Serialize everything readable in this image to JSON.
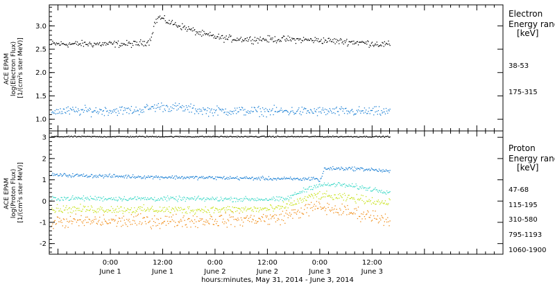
{
  "chart_data": [
    {
      "type": "scatter",
      "instrument": "ACE EPAM",
      "ylabel": [
        "ACE EPAM",
        "log(Electron Flux)",
        "[1/(cm²s ster MeV)]"
      ],
      "ylim": [
        0.75,
        3.45
      ],
      "yticks": [
        1.0,
        1.5,
        2.0,
        2.5,
        3.0
      ],
      "ytick_labels": [
        "1.0",
        "1.5",
        "2.0",
        "2.5",
        "3.0"
      ],
      "legend_title": [
        "Electron",
        "Energy ranges",
        "[keV]"
      ],
      "series": [
        {
          "name": "38-53",
          "color": "#000000",
          "profile": [
            [
              -14,
              2.62
            ],
            [
              6,
              2.62
            ],
            [
              9,
              2.68
            ],
            [
              10,
              3.05
            ],
            [
              11,
              3.2
            ],
            [
              13,
              3.1
            ],
            [
              17,
              2.97
            ],
            [
              21,
              2.83
            ],
            [
              26,
              2.74
            ],
            [
              32,
              2.72
            ],
            [
              40,
              2.72
            ],
            [
              48,
              2.7
            ],
            [
              56,
              2.66
            ],
            [
              64,
              2.6
            ]
          ],
          "noise": 0.05
        },
        {
          "name": "175-315",
          "color": "#1a7fd4",
          "profile": [
            [
              -14,
              1.18
            ],
            [
              6,
              1.2
            ],
            [
              11,
              1.28
            ],
            [
              15,
              1.26
            ],
            [
              22,
              1.19
            ],
            [
              40,
              1.18
            ],
            [
              64,
              1.17
            ]
          ],
          "noise": 0.07
        }
      ]
    },
    {
      "type": "scatter",
      "instrument": "ACE EPAM",
      "ylabel": [
        "ACE EPAM",
        "log(Proton Flux)",
        "[1/(cm²s ster MeV)]"
      ],
      "ylim": [
        -2.5,
        3.3
      ],
      "yticks": [
        -2,
        -1,
        0,
        1,
        2,
        3
      ],
      "ytick_labels": [
        "-2",
        "-1",
        "0",
        "1",
        "2",
        "3"
      ],
      "legend_title": [
        "Proton",
        "Energy ranges",
        "[keV]"
      ],
      "series": [
        {
          "name": "47-68",
          "color": "#000000",
          "profile": [
            [
              -14,
              3.05
            ],
            [
              64,
              3.05
            ]
          ],
          "noise": 0.02
        },
        {
          "name": "115-195",
          "color": "#1a7fd4",
          "profile": [
            [
              -14,
              1.25
            ],
            [
              10,
              1.15
            ],
            [
              30,
              1.1
            ],
            [
              44,
              1.05
            ],
            [
              47,
              1.1
            ],
            [
              48,
              0.95
            ],
            [
              49,
              1.55
            ],
            [
              55,
              1.55
            ],
            [
              60,
              1.5
            ],
            [
              64,
              1.4
            ]
          ],
          "noise": 0.06
        },
        {
          "name": "310-580",
          "color": "#3fd9c8",
          "profile": [
            [
              -14,
              0.15
            ],
            [
              20,
              0.12
            ],
            [
              40,
              0.1
            ],
            [
              44,
              0.5
            ],
            [
              47,
              0.75
            ],
            [
              52,
              0.8
            ],
            [
              56,
              0.7
            ],
            [
              64,
              0.45
            ]
          ],
          "noise": 0.08
        },
        {
          "name": "795-1193",
          "color": "#c8e21a",
          "profile": [
            [
              -14,
              -0.35
            ],
            [
              20,
              -0.4
            ],
            [
              38,
              -0.35
            ],
            [
              43,
              0.0
            ],
            [
              47,
              0.3
            ],
            [
              52,
              0.2
            ],
            [
              58,
              0.1
            ],
            [
              64,
              -0.1
            ]
          ],
          "noise": 0.13
        },
        {
          "name": "1060-1900",
          "color": "#f08a12",
          "profile": [
            [
              -14,
              -0.95
            ],
            [
              20,
              -0.9
            ],
            [
              38,
              -0.8
            ],
            [
              43,
              -0.5
            ],
            [
              47,
              -0.25
            ],
            [
              52,
              -0.4
            ],
            [
              58,
              -0.6
            ],
            [
              64,
              -0.85
            ]
          ],
          "noise": 0.22
        }
      ]
    }
  ],
  "x_axis": {
    "hours_range": [
      -14,
      90
    ],
    "data_end_hour": 64,
    "ticks": [
      {
        "hour": 0,
        "time": "0:00",
        "date": "June 1"
      },
      {
        "hour": 12,
        "time": "12:00",
        "date": "June 1"
      },
      {
        "hour": 24,
        "time": "0:00",
        "date": "June 2"
      },
      {
        "hour": 36,
        "time": "12:00",
        "date": "June 2"
      },
      {
        "hour": 48,
        "time": "0:00",
        "date": "June 3"
      },
      {
        "hour": 60,
        "time": "12:00",
        "date": "June 3"
      }
    ],
    "minor_every_hours": 2,
    "label": "hours:minutes, May 31, 2014 - June  3, 2014"
  }
}
